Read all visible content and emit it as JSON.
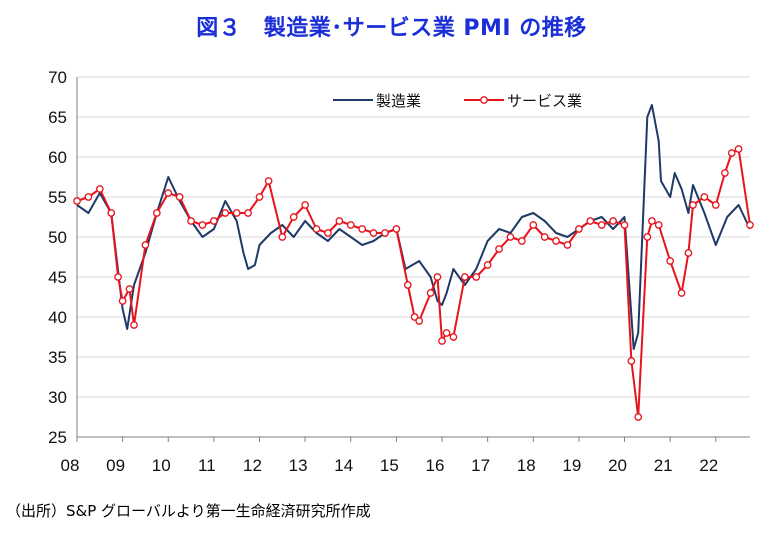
{
  "chart_data": {
    "type": "line",
    "title": "図３　製造業･サービス業 PMI の推移",
    "source": "（出所）S&P グローバルより第一生命経済研究所作成",
    "xlabel": "",
    "ylabel": "",
    "ylim": [
      25,
      70
    ],
    "yticks": [
      25,
      30,
      35,
      40,
      45,
      50,
      55,
      60,
      65,
      70
    ],
    "xlim": [
      2008,
      2022.75
    ],
    "xtick_labels": [
      "08",
      "09",
      "10",
      "11",
      "12",
      "13",
      "14",
      "15",
      "16",
      "17",
      "18",
      "19",
      "20",
      "21",
      "22"
    ],
    "grid": true,
    "legend_position": "top",
    "series": [
      {
        "name": "製造業",
        "color": "#1f3a68",
        "markers": false,
        "x": [
          2008.0,
          2008.25,
          2008.5,
          2008.75,
          2009.0,
          2009.1,
          2009.25,
          2009.5,
          2009.75,
          2010.0,
          2010.25,
          2010.5,
          2010.75,
          2011.0,
          2011.25,
          2011.5,
          2011.65,
          2011.75,
          2011.9,
          2012.0,
          2012.25,
          2012.5,
          2012.75,
          2013.0,
          2013.25,
          2013.5,
          2013.75,
          2014.0,
          2014.25,
          2014.5,
          2014.75,
          2015.0,
          2015.2,
          2015.5,
          2015.75,
          2015.9,
          2016.0,
          2016.1,
          2016.25,
          2016.5,
          2016.75,
          2017.0,
          2017.25,
          2017.5,
          2017.75,
          2018.0,
          2018.25,
          2018.5,
          2018.75,
          2019.0,
          2019.25,
          2019.5,
          2019.75,
          2020.0,
          2020.2,
          2020.3,
          2020.5,
          2020.6,
          2020.75,
          2020.8,
          2021.0,
          2021.1,
          2021.25,
          2021.4,
          2021.5,
          2021.75,
          2022.0,
          2022.25,
          2022.5,
          2022.75
        ],
        "values": [
          54,
          53,
          55.5,
          53,
          41,
          38.5,
          44,
          48,
          53,
          57.5,
          54.5,
          52,
          50,
          51,
          54.5,
          52,
          48,
          46,
          46.5,
          49,
          50.5,
          51.5,
          50,
          52,
          50.5,
          49.5,
          51,
          50,
          49,
          49.5,
          50.5,
          51,
          46,
          47,
          45,
          42,
          41.5,
          43,
          46,
          44,
          46,
          49.5,
          51,
          50.5,
          52.5,
          53,
          52,
          50.5,
          50,
          51,
          52,
          52.5,
          51,
          52.5,
          36,
          38,
          65,
          66.5,
          62,
          57,
          55,
          58,
          56,
          53,
          56.5,
          53,
          49,
          52.5,
          54,
          51
        ]
      },
      {
        "name": "サービス業",
        "color": "#e8141c",
        "markers": true,
        "x": [
          2008.0,
          2008.25,
          2008.5,
          2008.75,
          2008.9,
          2009.0,
          2009.15,
          2009.25,
          2009.5,
          2009.75,
          2010.0,
          2010.25,
          2010.5,
          2010.75,
          2011.0,
          2011.25,
          2011.5,
          2011.75,
          2012.0,
          2012.2,
          2012.5,
          2012.75,
          2013.0,
          2013.25,
          2013.5,
          2013.75,
          2014.0,
          2014.25,
          2014.5,
          2014.75,
          2015.0,
          2015.25,
          2015.4,
          2015.5,
          2015.75,
          2015.9,
          2016.0,
          2016.1,
          2016.25,
          2016.5,
          2016.75,
          2017.0,
          2017.25,
          2017.5,
          2017.75,
          2018.0,
          2018.25,
          2018.5,
          2018.75,
          2019.0,
          2019.25,
          2019.5,
          2019.75,
          2020.0,
          2020.15,
          2020.3,
          2020.5,
          2020.6,
          2020.75,
          2021.0,
          2021.25,
          2021.4,
          2021.5,
          2021.75,
          2022.0,
          2022.2,
          2022.35,
          2022.5,
          2022.75
        ],
        "values": [
          54.5,
          55,
          56,
          53,
          45,
          42,
          43.5,
          39,
          49,
          53,
          55.5,
          55,
          52,
          51.5,
          52,
          53,
          53,
          53,
          55,
          57,
          50,
          52.5,
          54,
          51,
          50.5,
          52,
          51.5,
          51,
          50.5,
          50.5,
          51,
          44,
          40,
          39.5,
          43,
          45,
          37,
          38,
          37.5,
          45,
          45,
          46.5,
          48.5,
          50,
          49.5,
          51.5,
          50,
          49.5,
          49,
          51,
          52,
          51.5,
          52,
          51.5,
          34.5,
          27.5,
          50,
          52,
          51.5,
          47,
          43,
          48,
          54,
          55,
          54,
          58,
          60.5,
          61,
          51.5
        ]
      }
    ]
  }
}
